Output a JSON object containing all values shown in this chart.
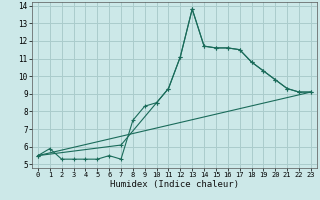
{
  "title": "",
  "xlabel": "Humidex (Indice chaleur)",
  "bg_color": "#cce8e8",
  "grid_color": "#aacccc",
  "line_color": "#1a6b5a",
  "xlim": [
    -0.5,
    23.5
  ],
  "ylim": [
    4.8,
    14.2
  ],
  "xticks": [
    0,
    1,
    2,
    3,
    4,
    5,
    6,
    7,
    8,
    9,
    10,
    11,
    12,
    13,
    14,
    15,
    16,
    17,
    18,
    19,
    20,
    21,
    22,
    23
  ],
  "yticks": [
    5,
    6,
    7,
    8,
    9,
    10,
    11,
    12,
    13,
    14
  ],
  "line1_x": [
    0,
    1,
    2,
    3,
    4,
    5,
    6,
    7,
    8,
    9,
    10,
    11,
    12,
    13,
    14,
    15,
    16,
    17,
    18,
    19,
    20,
    21,
    22,
    23
  ],
  "line1_y": [
    5.5,
    5.9,
    5.3,
    5.3,
    5.3,
    5.3,
    5.5,
    5.3,
    7.5,
    8.3,
    8.5,
    9.3,
    11.1,
    13.8,
    11.7,
    11.6,
    11.6,
    11.5,
    10.8,
    10.3,
    9.8,
    9.3,
    9.1,
    9.1
  ],
  "line2_x": [
    0,
    7,
    10,
    11,
    12,
    13,
    14,
    15,
    16,
    17,
    18,
    19,
    20,
    21,
    22,
    23
  ],
  "line2_y": [
    5.5,
    6.1,
    8.5,
    9.3,
    11.1,
    13.8,
    11.7,
    11.6,
    11.6,
    11.5,
    10.8,
    10.3,
    9.8,
    9.3,
    9.1,
    9.1
  ],
  "line3_x": [
    0,
    23
  ],
  "line3_y": [
    5.5,
    9.1
  ]
}
